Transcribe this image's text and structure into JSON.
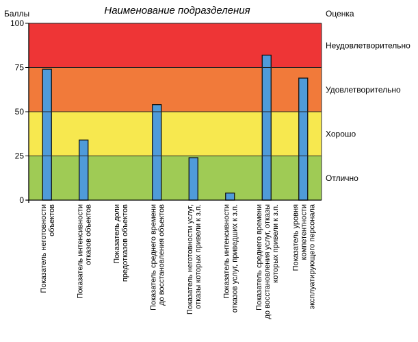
{
  "chart_data": {
    "type": "bar",
    "title": "Наименование подразделения",
    "ylabel": "Баллы",
    "right_axis_label": "Оценка",
    "ylim": [
      0,
      100
    ],
    "yticks": [
      0,
      25,
      50,
      75,
      100
    ],
    "grid": false,
    "bar_color": "#4f9bd9",
    "bands": [
      {
        "from": 75,
        "to": 100,
        "label": "Неудовлетворительно",
        "color": "#ee3536"
      },
      {
        "from": 50,
        "to": 75,
        "label": "Удовлетворительно",
        "color": "#f17a3a"
      },
      {
        "from": 25,
        "to": 50,
        "label": "Хорошо",
        "color": "#f7e84f"
      },
      {
        "from": 0,
        "to": 25,
        "label": "Отлично",
        "color": "#9fcb55"
      }
    ],
    "categories": [
      [
        "Показатель неготовности",
        "объектов"
      ],
      [
        "Показатель интенсивности",
        "отказов объектов"
      ],
      [
        "Показатель доли",
        "предотказов объектов"
      ],
      [
        "Показатель среднего времени",
        "до восстановления объектов"
      ],
      [
        "Показатель неготовности услуг,",
        "отказы которых привели к з.п."
      ],
      [
        "Показатель интенсивности",
        "отказов услуг, приведших к з.п."
      ],
      [
        "Показатель среднего времени",
        "до восстановления услуг, отказы",
        "которых привели к з.п."
      ],
      [
        "Показатель уровня",
        "компетентности",
        "эксплуатирующего персонала"
      ]
    ],
    "values": [
      74,
      34,
      0,
      54,
      24,
      4,
      82,
      69
    ]
  }
}
